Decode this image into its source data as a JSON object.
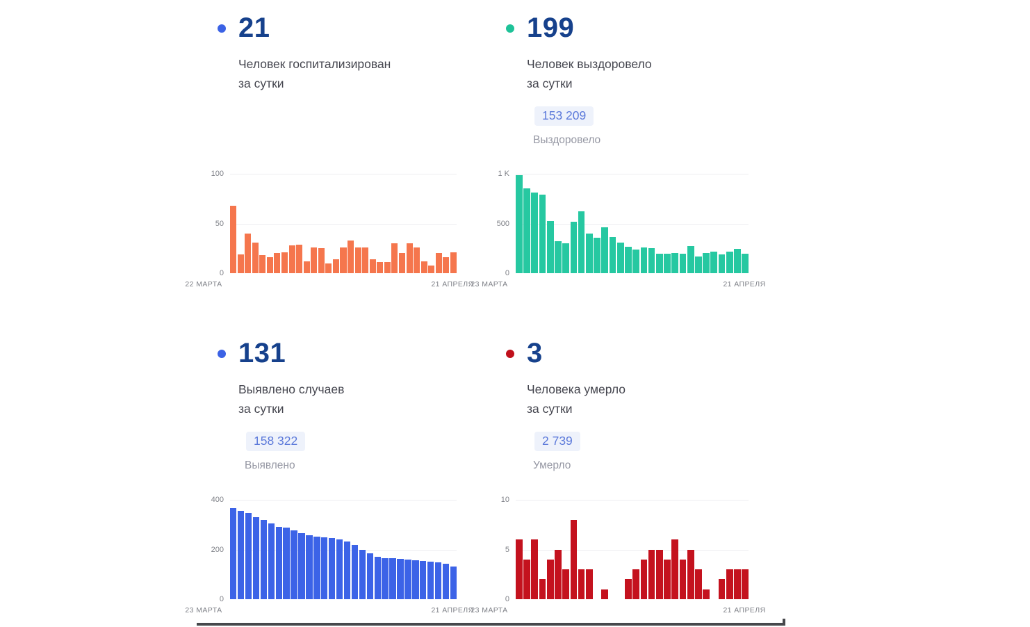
{
  "colors": {
    "number_navy": "#16418C",
    "dot_blue": "#3B62E5",
    "dot_teal": "#1EC298",
    "dot_red": "#C0101B",
    "bar_orange": "#F5764D",
    "bar_teal": "#26C8A1",
    "bar_blue": "#3C63E7",
    "bar_red": "#C4121E",
    "badge_bg": "#EEF2FB",
    "badge_text": "#5B79DA",
    "divider_dark": "#47484C"
  },
  "panels": [
    {
      "id": "hospitalized",
      "dot_color": "#3B62E5",
      "big_number": "21",
      "label": "Человек госпитализирован\nза сутки",
      "badge": "",
      "badge_label": ""
    },
    {
      "id": "recovered",
      "dot_color": "#1EC298",
      "big_number": "199",
      "label": "Человек выздоровело\nза сутки",
      "badge": "153 209",
      "badge_label": "Выздоровело"
    },
    {
      "id": "confirmed",
      "dot_color": "#3B62E5",
      "big_number": "131",
      "label": "Выявлено случаев\nза сутки",
      "badge": "158 322",
      "badge_label": "Выявлено"
    },
    {
      "id": "deaths",
      "dot_color": "#C0101B",
      "big_number": "3",
      "label": "Человека умерло\nза сутки",
      "badge": "2 739",
      "badge_label": "Умерло"
    }
  ],
  "chart_data": [
    {
      "panel_id": "hospitalized",
      "type": "bar",
      "color": "#F5764D",
      "ylim": [
        0,
        100
      ],
      "y_ticks": [
        "0",
        "50",
        "100"
      ],
      "x_start_label": "22 МАРТА",
      "x_end_label": "21 АПРЕЛЯ",
      "grid": "horizontal",
      "values": [
        68,
        19,
        40,
        31,
        18,
        16,
        20,
        21,
        28,
        29,
        12,
        26,
        25,
        10,
        14,
        26,
        33,
        26,
        26,
        14,
        11,
        11,
        30,
        20,
        30,
        26,
        12,
        8,
        20,
        16,
        21
      ]
    },
    {
      "panel_id": "recovered",
      "type": "bar",
      "color": "#26C8A1",
      "ylim": [
        0,
        1000
      ],
      "y_ticks": [
        "0",
        "500",
        "1 K"
      ],
      "x_start_label": "23 МАРТА",
      "x_end_label": "21 АПРЕЛЯ",
      "grid": "horizontal",
      "values": [
        986,
        853,
        813,
        790,
        526,
        322,
        299,
        521,
        619,
        397,
        355,
        463,
        367,
        308,
        269,
        238,
        257,
        252,
        199,
        194,
        206,
        194,
        276,
        168,
        203,
        220,
        187,
        215,
        245,
        199
      ]
    },
    {
      "panel_id": "confirmed",
      "type": "bar",
      "color": "#3C63E7",
      "ylim": [
        0,
        400
      ],
      "y_ticks": [
        "0",
        "200",
        "400"
      ],
      "x_start_label": "23 МАРТА",
      "x_end_label": "21 АПРЕЛЯ",
      "grid": "horizontal",
      "values": [
        366,
        356,
        346,
        331,
        319,
        305,
        291,
        287,
        278,
        266,
        256,
        253,
        250,
        247,
        242,
        231,
        217,
        200,
        186,
        172,
        165,
        164,
        161,
        159,
        156,
        153,
        150,
        147,
        144,
        131
      ]
    },
    {
      "panel_id": "deaths",
      "type": "bar",
      "color": "#C4121E",
      "ylim": [
        0,
        10
      ],
      "y_ticks": [
        "0",
        "5",
        "10"
      ],
      "x_start_label": "23 МАРТА",
      "x_end_label": "21 АПРЕЛЯ",
      "grid": "horizontal",
      "values": [
        6,
        4,
        6,
        2,
        4,
        5,
        3,
        8,
        3,
        3,
        0,
        1,
        0,
        0,
        2,
        3,
        4,
        5,
        5,
        4,
        6,
        4,
        5,
        3,
        1,
        0,
        2,
        3,
        3,
        3
      ]
    }
  ]
}
